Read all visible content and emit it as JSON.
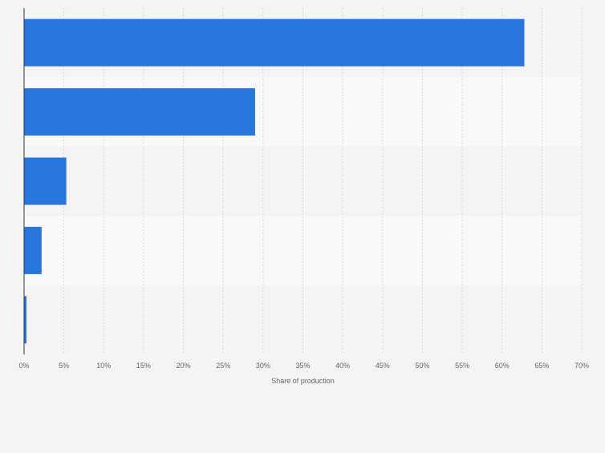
{
  "chart_data": {
    "type": "bar",
    "orientation": "horizontal",
    "categories": [
      "",
      "",
      "",
      "",
      ""
    ],
    "values": [
      62.8,
      29.0,
      5.3,
      2.2,
      0.3
    ],
    "title": "",
    "xlabel": "Share of production",
    "ylabel": "",
    "xlim": [
      0,
      70
    ],
    "xticks": [
      0,
      5,
      10,
      15,
      20,
      25,
      30,
      35,
      40,
      45,
      50,
      55,
      60,
      65,
      70
    ],
    "tick_labels": [
      "0%",
      "5%",
      "10%",
      "15%",
      "20%",
      "25%",
      "30%",
      "35%",
      "40%",
      "45%",
      "50%",
      "55%",
      "60%",
      "65%",
      "70%"
    ],
    "grid": "vertical",
    "bar_color": "#2876dd",
    "band_colors": [
      "#f4f4f4",
      "#f9f9f9"
    ]
  }
}
